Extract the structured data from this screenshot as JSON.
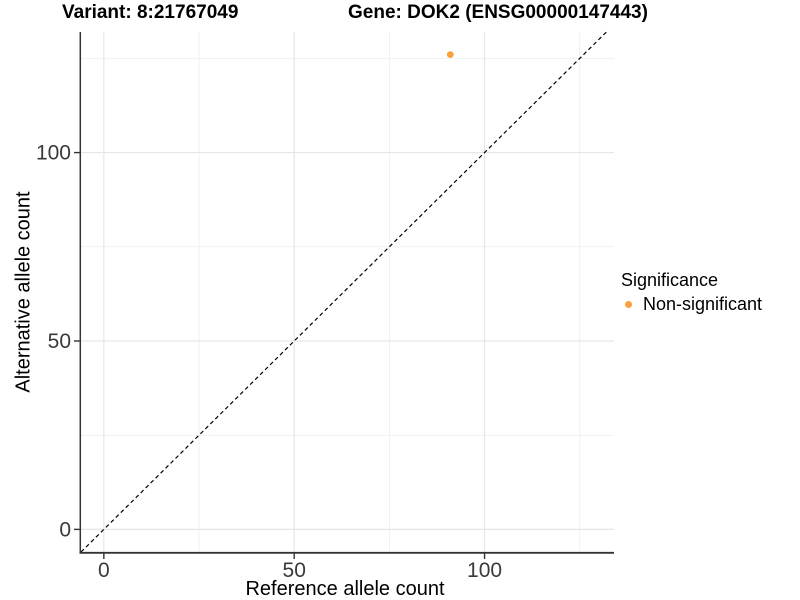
{
  "chart_data": {
    "type": "scatter",
    "title_left": "Variant: 8:21767049",
    "title_right": "Gene: DOK2 (ENSG00000147443)",
    "xlabel": "Reference allele count",
    "ylabel": "Alternative allele count",
    "xlim": [
      -6,
      134
    ],
    "ylim": [
      -6,
      132
    ],
    "x_major_ticks": [
      0,
      50,
      100
    ],
    "y_major_ticks": [
      0,
      50,
      100
    ],
    "x_minor_gridlines": [
      25,
      75,
      125
    ],
    "y_minor_gridlines": [
      25,
      75,
      125
    ],
    "grid": "major-and-minor",
    "series": [
      {
        "name": "Non-significant",
        "color": "#F9A03F",
        "points": [
          {
            "x": 91,
            "y": 126
          }
        ]
      }
    ],
    "reference_line": {
      "type": "identity",
      "slope": 1,
      "intercept": 0,
      "style": "dashed",
      "color": "#000000"
    },
    "legend": {
      "title": "Significance",
      "position": "right",
      "items": [
        {
          "label": "Non-significant",
          "color": "#F9A03F"
        }
      ]
    },
    "colors": {
      "background": "#FFFFFF",
      "grid_major": "#E6E6E6",
      "grid_minor": "#F1F1F1",
      "axis_line": "#333333",
      "tick_text": "#3A3A3A"
    }
  }
}
